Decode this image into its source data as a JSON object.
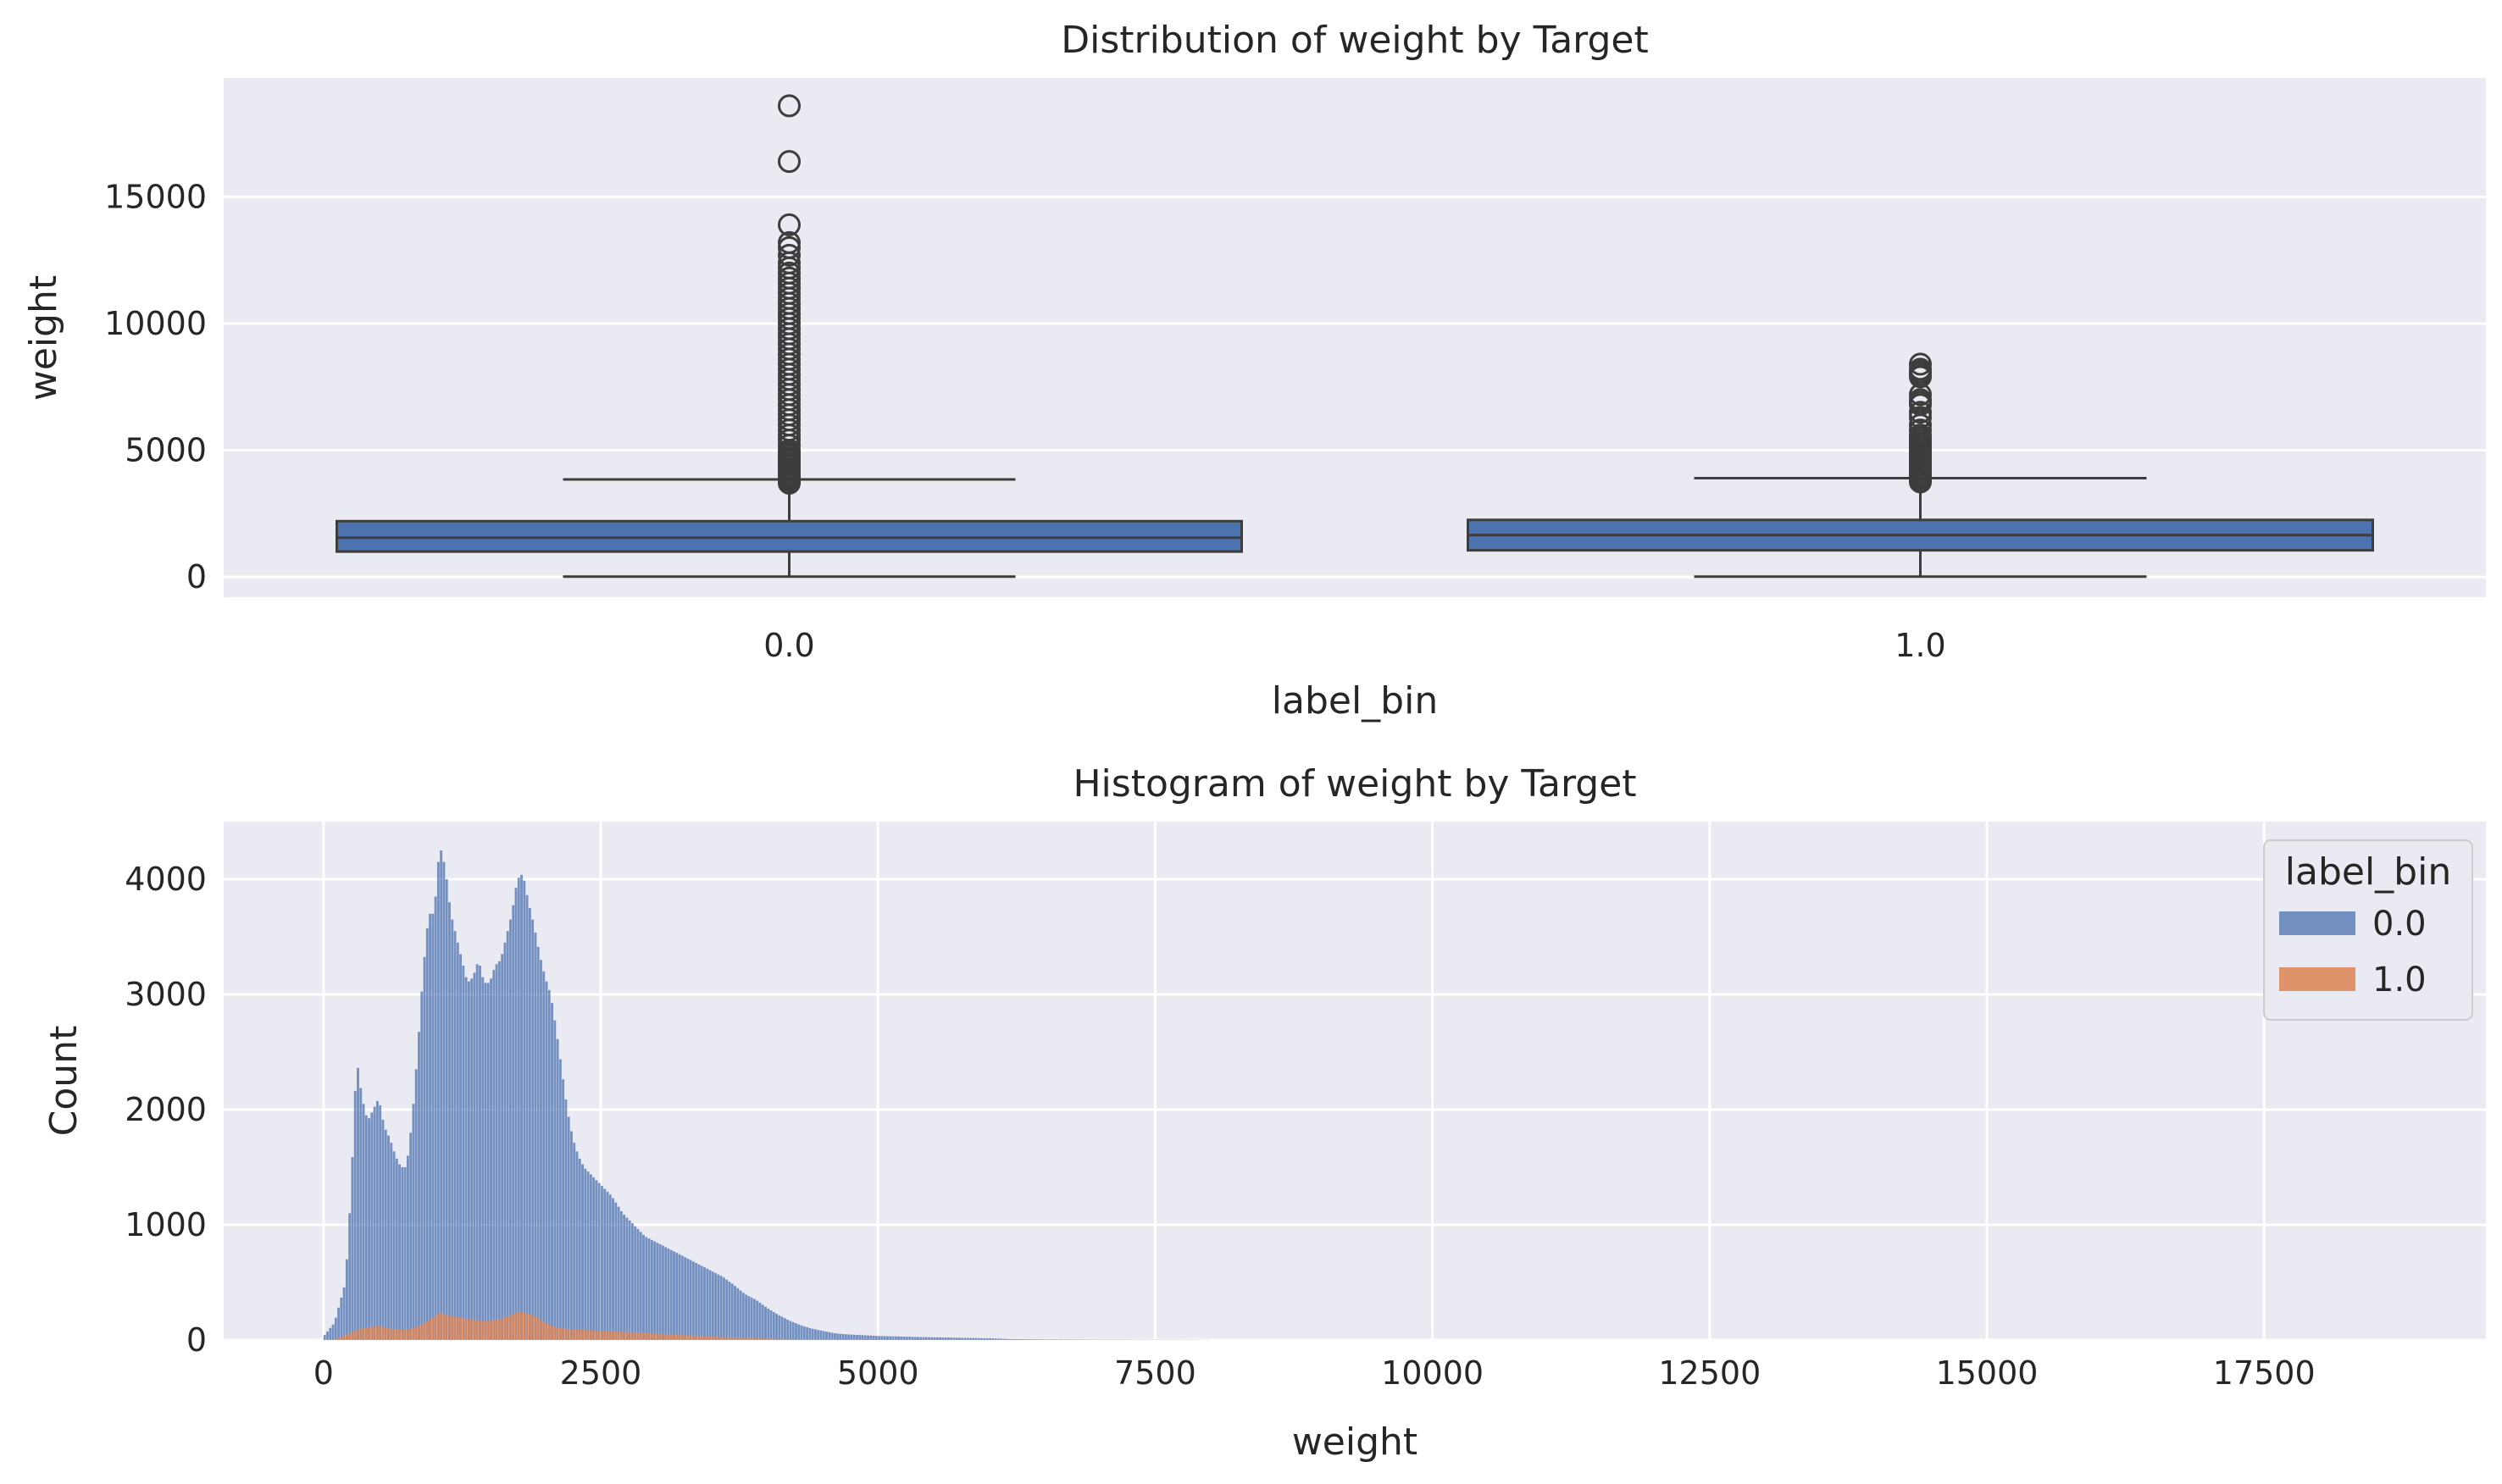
{
  "chart_data": [
    {
      "type": "box",
      "title": "Distribution of weight by Target",
      "xlabel": "label_bin",
      "ylabel": "weight",
      "ylim": [
        -800,
        19700
      ],
      "yticks": [
        0,
        5000,
        10000,
        15000
      ],
      "grid": true,
      "box_color": "#4c72b0",
      "categories": [
        "0.0",
        "1.0"
      ],
      "boxes": [
        {
          "category": "0.0",
          "whisker_low": 10,
          "q1": 1000,
          "median": 1550,
          "q3": 2200,
          "whisker_high": 3850,
          "outliers": [
            3700,
            3750,
            3800,
            3850,
            3900,
            3950,
            4000,
            4100,
            4200,
            4300,
            4400,
            4500,
            4600,
            4700,
            4800,
            4900,
            5000,
            5200,
            5400,
            5600,
            5800,
            6000,
            6200,
            6400,
            6600,
            6800,
            7000,
            7200,
            7400,
            7600,
            7800,
            8000,
            8200,
            8400,
            8600,
            8800,
            9000,
            9200,
            9400,
            9600,
            9800,
            10000,
            10200,
            10400,
            10600,
            10800,
            11000,
            11200,
            11400,
            11600,
            11800,
            12000,
            12200,
            12400,
            12700,
            13000,
            13200,
            13900,
            16400,
            18600
          ]
        },
        {
          "category": "1.0",
          "whisker_low": 10,
          "q1": 1050,
          "median": 1650,
          "q3": 2250,
          "whisker_high": 3900,
          "outliers": [
            3750,
            3800,
            3850,
            3900,
            3950,
            4000,
            4100,
            4200,
            4300,
            4400,
            4500,
            4600,
            4700,
            4800,
            4900,
            5000,
            5100,
            5200,
            5300,
            5400,
            5500,
            5600,
            5800,
            6000,
            6300,
            6500,
            6800,
            6900,
            7000,
            7200,
            7900,
            8000,
            8100,
            8200,
            8400
          ]
        }
      ]
    },
    {
      "type": "histogram",
      "title": "Histogram of weight by Target",
      "xlabel": "weight",
      "ylabel": "Count",
      "xlim": [
        -900,
        19500
      ],
      "ylim": [
        0,
        4500
      ],
      "xticks": [
        0,
        2500,
        5000,
        7500,
        10000,
        12500,
        15000,
        17500
      ],
      "yticks": [
        0,
        1000,
        2000,
        3000,
        4000
      ],
      "grid": true,
      "legend": {
        "title": "label_bin",
        "placement": "top-right"
      },
      "series": [
        {
          "name": "0.0",
          "color": "#4c72b0",
          "points": [
            [
              0,
              30
            ],
            [
              100,
              150
            ],
            [
              200,
              500
            ],
            [
              250,
              1300
            ],
            [
              300,
              2450
            ],
            [
              350,
              2100
            ],
            [
              400,
              1900
            ],
            [
              450,
              2000
            ],
            [
              500,
              2100
            ],
            [
              550,
              1850
            ],
            [
              600,
              1750
            ],
            [
              650,
              1600
            ],
            [
              700,
              1500
            ],
            [
              750,
              1500
            ],
            [
              800,
              1900
            ],
            [
              850,
              2500
            ],
            [
              900,
              3200
            ],
            [
              950,
              3700
            ],
            [
              1000,
              3700
            ],
            [
              1050,
              4300
            ],
            [
              1100,
              4100
            ],
            [
              1150,
              3700
            ],
            [
              1200,
              3500
            ],
            [
              1250,
              3300
            ],
            [
              1300,
              3100
            ],
            [
              1350,
              3150
            ],
            [
              1400,
              3300
            ],
            [
              1450,
              3100
            ],
            [
              1500,
              3100
            ],
            [
              1550,
              3250
            ],
            [
              1600,
              3300
            ],
            [
              1650,
              3500
            ],
            [
              1700,
              3700
            ],
            [
              1750,
              4000
            ],
            [
              1800,
              4050
            ],
            [
              1850,
              3800
            ],
            [
              1900,
              3600
            ],
            [
              1950,
              3350
            ],
            [
              2000,
              3150
            ],
            [
              2050,
              3000
            ],
            [
              2100,
              2700
            ],
            [
              2150,
              2350
            ],
            [
              2200,
              2000
            ],
            [
              2250,
              1750
            ],
            [
              2300,
              1600
            ],
            [
              2350,
              1500
            ],
            [
              2400,
              1450
            ],
            [
              2450,
              1400
            ],
            [
              2500,
              1350
            ],
            [
              2550,
              1300
            ],
            [
              2600,
              1250
            ],
            [
              2700,
              1100
            ],
            [
              2800,
              1000
            ],
            [
              2900,
              900
            ],
            [
              3000,
              850
            ],
            [
              3100,
              800
            ],
            [
              3200,
              750
            ],
            [
              3300,
              700
            ],
            [
              3400,
              650
            ],
            [
              3500,
              600
            ],
            [
              3600,
              550
            ],
            [
              3700,
              480
            ],
            [
              3800,
              400
            ],
            [
              3900,
              350
            ],
            [
              4000,
              280
            ],
            [
              4100,
              220
            ],
            [
              4200,
              170
            ],
            [
              4300,
              130
            ],
            [
              4400,
              100
            ],
            [
              4500,
              80
            ],
            [
              4600,
              60
            ],
            [
              4700,
              50
            ],
            [
              4800,
              45
            ],
            [
              4900,
              40
            ],
            [
              5000,
              35
            ],
            [
              5200,
              30
            ],
            [
              5400,
              25
            ],
            [
              5600,
              22
            ],
            [
              5800,
              18
            ],
            [
              6000,
              15
            ],
            [
              6200,
              8
            ],
            [
              6500,
              5
            ],
            [
              7000,
              3
            ],
            [
              7500,
              2
            ],
            [
              8000,
              1
            ]
          ]
        },
        {
          "name": "1.0",
          "color": "#dd8452",
          "points": [
            [
              100,
              10
            ],
            [
              200,
              40
            ],
            [
              300,
              90
            ],
            [
              400,
              110
            ],
            [
              500,
              120
            ],
            [
              600,
              100
            ],
            [
              700,
              90
            ],
            [
              800,
              100
            ],
            [
              900,
              140
            ],
            [
              1000,
              200
            ],
            [
              1050,
              240
            ],
            [
              1100,
              220
            ],
            [
              1200,
              200
            ],
            [
              1300,
              180
            ],
            [
              1400,
              170
            ],
            [
              1500,
              170
            ],
            [
              1600,
              180
            ],
            [
              1700,
              220
            ],
            [
              1750,
              250
            ],
            [
              1800,
              240
            ],
            [
              1900,
              210
            ],
            [
              2000,
              150
            ],
            [
              2100,
              110
            ],
            [
              2200,
              95
            ],
            [
              2300,
              90
            ],
            [
              2400,
              85
            ],
            [
              2500,
              80
            ],
            [
              2600,
              75
            ],
            [
              2800,
              65
            ],
            [
              3000,
              55
            ],
            [
              3200,
              45
            ],
            [
              3400,
              35
            ],
            [
              3600,
              25
            ],
            [
              3800,
              18
            ],
            [
              4000,
              12
            ],
            [
              4200,
              8
            ],
            [
              4400,
              5
            ],
            [
              4600,
              3
            ],
            [
              4800,
              2
            ],
            [
              5000,
              1
            ]
          ]
        }
      ]
    }
  ]
}
